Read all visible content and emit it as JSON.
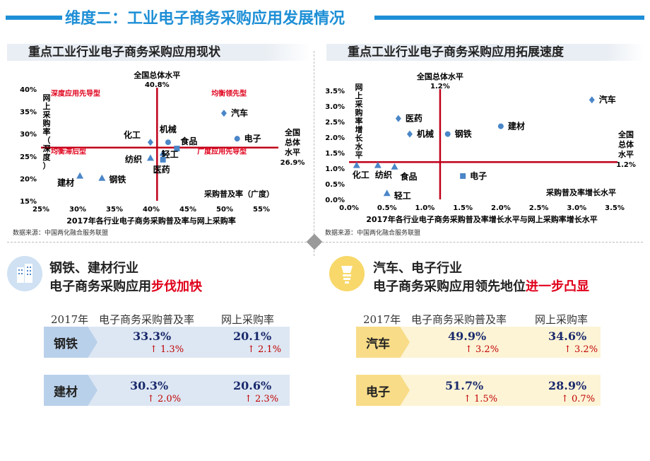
{
  "page": {
    "title": "维度二：工业电子商务采购应用发展情况",
    "accent": "#1e8fd6"
  },
  "left_chart": {
    "header": "重点工业行业电子商务采购应用现状",
    "source": "数据来源：中国两化融合服务联盟"
  },
  "right_chart": {
    "header": "重点工业行业电子商务采购应用拓展速度",
    "source": "数据来源：中国两化融合服务联盟"
  },
  "chart_data": [
    {
      "type": "scatter",
      "title": "2017年各行业电子商务采购普及率与网上采购率",
      "xlabel": "采购普及率（广度）",
      "ylabel": "网上采购率（深度）",
      "xlim": [
        25,
        55
      ],
      "ylim": [
        15,
        40
      ],
      "x_ticks": [
        "25%",
        "30%",
        "35%",
        "40%",
        "45%",
        "50%",
        "55%"
      ],
      "y_ticks": [
        "15%",
        "20%",
        "25%",
        "30%",
        "35%",
        "40%"
      ],
      "vline": {
        "x": 40.8,
        "label": "全国总体水平",
        "value_label": "40.8%"
      },
      "hline": {
        "y": 26.9,
        "label": "全国总体水平",
        "value_label": "26.9%"
      },
      "quadrants": [
        "深度应用先导型",
        "均衡领先型",
        "均衡滞后型",
        "广度应用先导型"
      ],
      "points": [
        {
          "name": "汽车",
          "x": 49.9,
          "y": 34.6,
          "marker": "diamond"
        },
        {
          "name": "电子",
          "x": 51.7,
          "y": 28.9,
          "marker": "circle"
        },
        {
          "name": "化工",
          "x": 39.9,
          "y": 28.1,
          "marker": "diamond"
        },
        {
          "name": "机械",
          "x": 42.3,
          "y": 28.1,
          "marker": "circle"
        },
        {
          "name": "食品",
          "x": 43.5,
          "y": 26.7,
          "marker": "square"
        },
        {
          "name": "轻工",
          "x": 41.6,
          "y": 25.7,
          "marker": "triangle"
        },
        {
          "name": "纺织",
          "x": 39.9,
          "y": 24.6,
          "marker": "triangle"
        },
        {
          "name": "医药",
          "x": 41.6,
          "y": 24.2,
          "marker": "square"
        },
        {
          "name": "建材",
          "x": 30.3,
          "y": 20.6,
          "marker": "triangle"
        },
        {
          "name": "钢铁",
          "x": 33.3,
          "y": 20.1,
          "marker": "triangle"
        }
      ]
    },
    {
      "type": "scatter",
      "title": "2017年各行业电子商务采购普及率增长水平与网上采购率增长水平",
      "xlabel": "采购普及率增长水平",
      "ylabel": "网上采购率增长水平",
      "xlim": [
        0,
        3.5
      ],
      "ylim": [
        0,
        3.5
      ],
      "x_ticks": [
        "0.0%",
        "0.5%",
        "1.0%",
        "1.5%",
        "2.0%",
        "2.5%",
        "3.0%",
        "3.5%"
      ],
      "y_ticks": [
        "0.0%",
        "0.5%",
        "1.0%",
        "1.5%",
        "2.0%",
        "2.5%",
        "3.0%",
        "3.5%"
      ],
      "vline": {
        "x": 1.2,
        "label": "全国总体水平",
        "value_label": "1.2%"
      },
      "hline": {
        "y": 1.2,
        "label": "全国总体水平",
        "value_label": "1.2%"
      },
      "points": [
        {
          "name": "汽车",
          "x": 3.2,
          "y": 3.2,
          "marker": "diamond"
        },
        {
          "name": "医药",
          "x": 0.65,
          "y": 2.6,
          "marker": "diamond"
        },
        {
          "name": "建材",
          "x": 2.0,
          "y": 2.35,
          "marker": "circle"
        },
        {
          "name": "机械",
          "x": 0.8,
          "y": 2.1,
          "marker": "diamond"
        },
        {
          "name": "钢铁",
          "x": 1.3,
          "y": 2.1,
          "marker": "circle"
        },
        {
          "name": "化工",
          "x": 0.1,
          "y": 1.1,
          "marker": "triangle"
        },
        {
          "name": "纺织",
          "x": 0.38,
          "y": 1.1,
          "marker": "triangle"
        },
        {
          "name": "食品",
          "x": 0.6,
          "y": 1.05,
          "marker": "triangle"
        },
        {
          "name": "电子",
          "x": 1.5,
          "y": 0.75,
          "marker": "square"
        },
        {
          "name": "轻工",
          "x": 0.5,
          "y": 0.2,
          "marker": "triangle"
        }
      ]
    }
  ],
  "section_left": {
    "line1": "钢铁、建材行业",
    "line2_prefix": "电子商务采购应用",
    "line2_emph": "步伐加快",
    "year": "2017年",
    "col1": "电子商务采购普及率",
    "col2": "网上采购率",
    "rows": [
      {
        "label": "钢铁",
        "v1": "33.3%",
        "c1": "↑ 1.3%",
        "v2": "20.1%",
        "c2": "↑ 2.1%"
      },
      {
        "label": "建材",
        "v1": "30.3%",
        "c1": "↑ 2.0%",
        "v2": "20.6%",
        "c2": "↑ 2.3%"
      }
    ]
  },
  "section_right": {
    "line1": "汽车、电子行业",
    "line2_prefix": "电子商务采购应用领先地位",
    "line2_emph": "进一步凸显",
    "year": "2017年",
    "col1": "电子商务采购普及率",
    "col2": "网上采购率",
    "rows": [
      {
        "label": "汽车",
        "v1": "49.9%",
        "c1": "↑ 3.2%",
        "v2": "34.6%",
        "c2": "↑ 3.2%"
      },
      {
        "label": "电子",
        "v1": "51.7%",
        "c1": "↑ 1.5%",
        "v2": "28.9%",
        "c2": "↑ 0.7%"
      }
    ]
  },
  "colors": {
    "marker": "#4a86c8",
    "ref_line": "#c0001a",
    "quadrant_label": "#e0001b",
    "left_row_bg": "#dde7f3",
    "left_label_bg": "#b9d0ea",
    "right_row_bg": "#fdf4d6",
    "right_label_bg": "#f8dc88"
  }
}
